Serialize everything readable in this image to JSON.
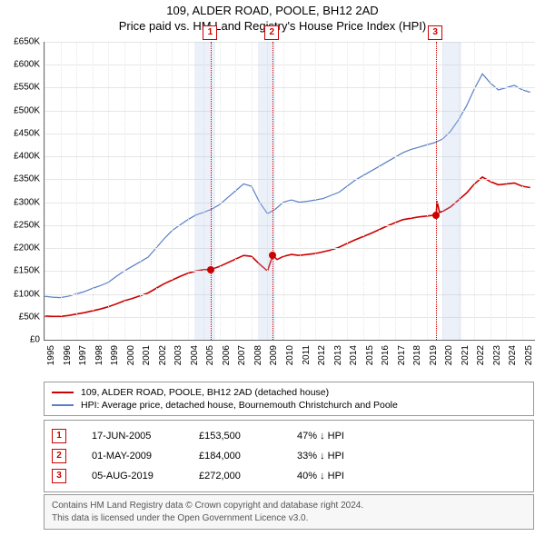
{
  "title": {
    "line1": "109, ALDER ROAD, POOLE, BH12 2AD",
    "line2": "Price paid vs. HM Land Registry's House Price Index (HPI)"
  },
  "chart": {
    "type": "line",
    "background_color": "#ffffff",
    "grid_color": "#e6e6e6",
    "axis_color": "#666666",
    "x": {
      "min": 1995,
      "max": 2025.8,
      "ticks": [
        1995,
        1996,
        1997,
        1998,
        1999,
        2000,
        2001,
        2002,
        2003,
        2004,
        2005,
        2006,
        2007,
        2008,
        2009,
        2010,
        2011,
        2012,
        2013,
        2014,
        2015,
        2016,
        2017,
        2018,
        2019,
        2020,
        2021,
        2022,
        2023,
        2024,
        2025
      ],
      "tick_labels": [
        "1995",
        "1996",
        "1997",
        "1998",
        "1999",
        "2000",
        "2001",
        "2002",
        "2003",
        "2004",
        "2005",
        "2006",
        "2007",
        "2008",
        "2009",
        "2010",
        "2011",
        "2012",
        "2013",
        "2014",
        "2015",
        "2016",
        "2017",
        "2018",
        "2019",
        "2020",
        "2021",
        "2022",
        "2023",
        "2024",
        "2025"
      ],
      "label_fontsize": 10
    },
    "y": {
      "min": 0,
      "max": 650000,
      "ticks": [
        0,
        50000,
        100000,
        150000,
        200000,
        250000,
        300000,
        350000,
        400000,
        450000,
        500000,
        550000,
        600000,
        650000
      ],
      "tick_labels": [
        "£0",
        "£50K",
        "£100K",
        "£150K",
        "£200K",
        "£250K",
        "£300K",
        "£350K",
        "£400K",
        "£450K",
        "£500K",
        "£550K",
        "£600K",
        "£650K"
      ],
      "label_fontsize": 10
    },
    "shaded_regions": [
      {
        "from": 2004.4,
        "to": 2005.7,
        "color": "rgba(180,200,230,0.25)"
      },
      {
        "from": 2008.4,
        "to": 2009.5,
        "color": "rgba(180,200,230,0.25)"
      },
      {
        "from": 2020.0,
        "to": 2021.2,
        "color": "rgba(180,200,230,0.25)"
      }
    ],
    "event_markers": [
      {
        "n": "1",
        "x": 2005.46,
        "price": 153500
      },
      {
        "n": "2",
        "x": 2009.33,
        "price": 184000
      },
      {
        "n": "3",
        "x": 2019.59,
        "price": 272000
      }
    ],
    "series": [
      {
        "id": "hpi",
        "label": "HPI: Average price, detached house, Bournemouth Christchurch and Poole",
        "color": "#5a7fc4",
        "line_width": 1.2,
        "points": [
          [
            1995.0,
            95000
          ],
          [
            1995.5,
            93000
          ],
          [
            1996.0,
            92000
          ],
          [
            1996.5,
            95000
          ],
          [
            1997.0,
            100000
          ],
          [
            1997.5,
            105000
          ],
          [
            1998.0,
            112000
          ],
          [
            1998.5,
            118000
          ],
          [
            1999.0,
            125000
          ],
          [
            1999.5,
            138000
          ],
          [
            2000.0,
            150000
          ],
          [
            2000.5,
            160000
          ],
          [
            2001.0,
            170000
          ],
          [
            2001.5,
            180000
          ],
          [
            2002.0,
            200000
          ],
          [
            2002.5,
            220000
          ],
          [
            2003.0,
            238000
          ],
          [
            2003.5,
            250000
          ],
          [
            2004.0,
            262000
          ],
          [
            2004.5,
            272000
          ],
          [
            2005.0,
            278000
          ],
          [
            2005.5,
            285000
          ],
          [
            2006.0,
            295000
          ],
          [
            2006.5,
            310000
          ],
          [
            2007.0,
            325000
          ],
          [
            2007.5,
            340000
          ],
          [
            2008.0,
            335000
          ],
          [
            2008.5,
            300000
          ],
          [
            2009.0,
            275000
          ],
          [
            2009.5,
            285000
          ],
          [
            2010.0,
            300000
          ],
          [
            2010.5,
            305000
          ],
          [
            2011.0,
            300000
          ],
          [
            2011.5,
            302000
          ],
          [
            2012.0,
            305000
          ],
          [
            2012.5,
            308000
          ],
          [
            2013.0,
            315000
          ],
          [
            2013.5,
            322000
          ],
          [
            2014.0,
            335000
          ],
          [
            2014.5,
            348000
          ],
          [
            2015.0,
            358000
          ],
          [
            2015.5,
            368000
          ],
          [
            2016.0,
            378000
          ],
          [
            2016.5,
            388000
          ],
          [
            2017.0,
            398000
          ],
          [
            2017.5,
            408000
          ],
          [
            2018.0,
            415000
          ],
          [
            2018.5,
            420000
          ],
          [
            2019.0,
            425000
          ],
          [
            2019.5,
            430000
          ],
          [
            2020.0,
            438000
          ],
          [
            2020.5,
            455000
          ],
          [
            2021.0,
            480000
          ],
          [
            2021.5,
            510000
          ],
          [
            2022.0,
            548000
          ],
          [
            2022.5,
            580000
          ],
          [
            2023.0,
            560000
          ],
          [
            2023.5,
            545000
          ],
          [
            2024.0,
            550000
          ],
          [
            2024.5,
            555000
          ],
          [
            2025.0,
            545000
          ],
          [
            2025.5,
            540000
          ]
        ]
      },
      {
        "id": "property",
        "label": "109, ALDER ROAD, POOLE, BH12 2AD (detached house)",
        "color": "#cc0000",
        "line_width": 1.6,
        "points": [
          [
            1995.0,
            52000
          ],
          [
            1995.5,
            51000
          ],
          [
            1996.0,
            51000
          ],
          [
            1996.5,
            53000
          ],
          [
            1997.0,
            56000
          ],
          [
            1997.5,
            59000
          ],
          [
            1998.0,
            63000
          ],
          [
            1998.5,
            67000
          ],
          [
            1999.0,
            72000
          ],
          [
            1999.5,
            78000
          ],
          [
            2000.0,
            85000
          ],
          [
            2000.5,
            90000
          ],
          [
            2001.0,
            96000
          ],
          [
            2001.5,
            102000
          ],
          [
            2002.0,
            112000
          ],
          [
            2002.5,
            122000
          ],
          [
            2003.0,
            130000
          ],
          [
            2003.5,
            138000
          ],
          [
            2004.0,
            145000
          ],
          [
            2004.5,
            150000
          ],
          [
            2005.0,
            153000
          ],
          [
            2005.46,
            153500
          ],
          [
            2006.0,
            160000
          ],
          [
            2006.5,
            168000
          ],
          [
            2007.0,
            176000
          ],
          [
            2007.5,
            184000
          ],
          [
            2008.0,
            182000
          ],
          [
            2008.5,
            165000
          ],
          [
            2009.0,
            150000
          ],
          [
            2009.33,
            184000
          ],
          [
            2009.6,
            175000
          ],
          [
            2010.0,
            182000
          ],
          [
            2010.5,
            186000
          ],
          [
            2011.0,
            184000
          ],
          [
            2011.5,
            186000
          ],
          [
            2012.0,
            188000
          ],
          [
            2012.5,
            192000
          ],
          [
            2013.0,
            196000
          ],
          [
            2013.5,
            202000
          ],
          [
            2014.0,
            210000
          ],
          [
            2014.5,
            218000
          ],
          [
            2015.0,
            225000
          ],
          [
            2015.5,
            232000
          ],
          [
            2016.0,
            240000
          ],
          [
            2016.5,
            248000
          ],
          [
            2017.0,
            255000
          ],
          [
            2017.5,
            262000
          ],
          [
            2018.0,
            265000
          ],
          [
            2018.5,
            268000
          ],
          [
            2019.0,
            270000
          ],
          [
            2019.59,
            272000
          ],
          [
            2019.65,
            302000
          ],
          [
            2019.8,
            278000
          ],
          [
            2020.0,
            280000
          ],
          [
            2020.5,
            290000
          ],
          [
            2021.0,
            305000
          ],
          [
            2021.5,
            320000
          ],
          [
            2022.0,
            340000
          ],
          [
            2022.5,
            355000
          ],
          [
            2023.0,
            345000
          ],
          [
            2023.5,
            338000
          ],
          [
            2024.0,
            340000
          ],
          [
            2024.5,
            342000
          ],
          [
            2025.0,
            335000
          ],
          [
            2025.5,
            332000
          ]
        ]
      }
    ]
  },
  "legend": {
    "items": [
      {
        "color": "#cc0000",
        "label": "109, ALDER ROAD, POOLE, BH12 2AD (detached house)"
      },
      {
        "color": "#5a7fc4",
        "label": "HPI: Average price, detached house, Bournemouth Christchurch and Poole"
      }
    ]
  },
  "events": [
    {
      "n": "1",
      "date": "17-JUN-2005",
      "price": "£153,500",
      "hpi_delta": "47% ↓ HPI"
    },
    {
      "n": "2",
      "date": "01-MAY-2009",
      "price": "£184,000",
      "hpi_delta": "33% ↓ HPI"
    },
    {
      "n": "3",
      "date": "05-AUG-2019",
      "price": "£272,000",
      "hpi_delta": "40% ↓ HPI"
    }
  ],
  "footer": {
    "line1": "Contains HM Land Registry data © Crown copyright and database right 2024.",
    "line2": "This data is licensed under the Open Government Licence v3.0."
  }
}
